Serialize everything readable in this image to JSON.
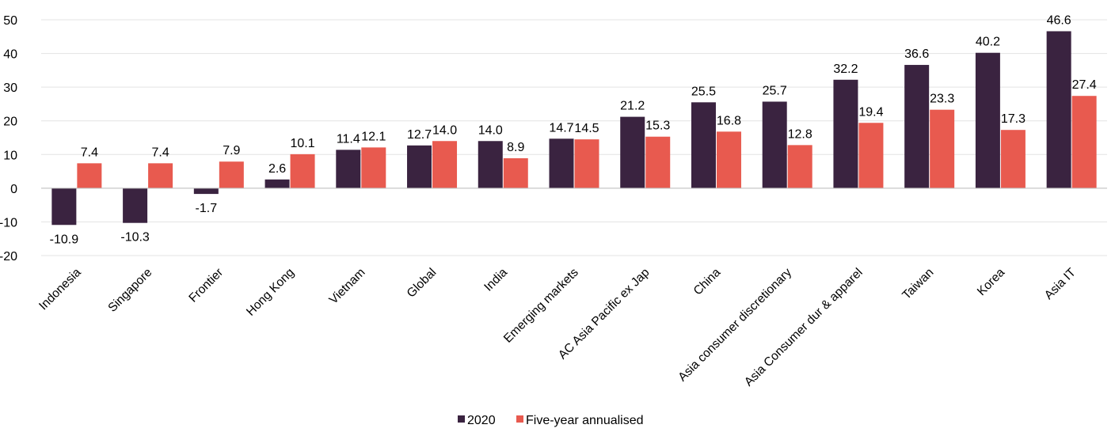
{
  "chart_data": {
    "type": "bar",
    "title": "",
    "xlabel": "",
    "ylabel": "",
    "ylim": [
      -20,
      50
    ],
    "yticks": [
      -20,
      -10,
      0,
      10,
      20,
      30,
      40,
      50
    ],
    "grid": true,
    "legend_position": "bottom",
    "categories": [
      "Indonesia",
      "Singapore",
      "Frontier",
      "Hong Kong",
      "Vietnam",
      "Global",
      "India",
      "Emerging markets",
      "AC Asia Pacific ex Jap",
      "China",
      "Asia consumer discretionary",
      "Asia Consumer dur & apparel",
      "Taiwan",
      "Korea",
      "Asia IT"
    ],
    "series": [
      {
        "name": "2020",
        "color": "#3a2340",
        "values": [
          -10.9,
          -10.3,
          -1.7,
          2.6,
          11.4,
          12.7,
          14.0,
          14.7,
          21.2,
          25.5,
          25.7,
          32.2,
          36.6,
          40.2,
          46.6
        ],
        "labels": [
          "-10.9",
          "-10.3",
          "-1.7",
          "2.6",
          "11.4",
          "12.7",
          "14.0",
          "14.7",
          "21.2",
          "25.5",
          "25.7",
          "32.2",
          "36.6",
          "40.2",
          "46.6"
        ]
      },
      {
        "name": "Five-year annualised",
        "color": "#e85a4f",
        "values": [
          7.4,
          7.4,
          7.9,
          10.1,
          12.1,
          14.0,
          8.9,
          14.5,
          15.3,
          16.8,
          12.8,
          19.4,
          23.3,
          17.3,
          27.4
        ],
        "labels": [
          "7.4",
          "7.4",
          "7.9",
          "10.1",
          "12.1",
          "14.0",
          "8.9",
          "14.5",
          "15.3",
          "16.8",
          "12.8",
          "19.4",
          "23.3",
          "17.3",
          "27.4"
        ]
      }
    ]
  }
}
